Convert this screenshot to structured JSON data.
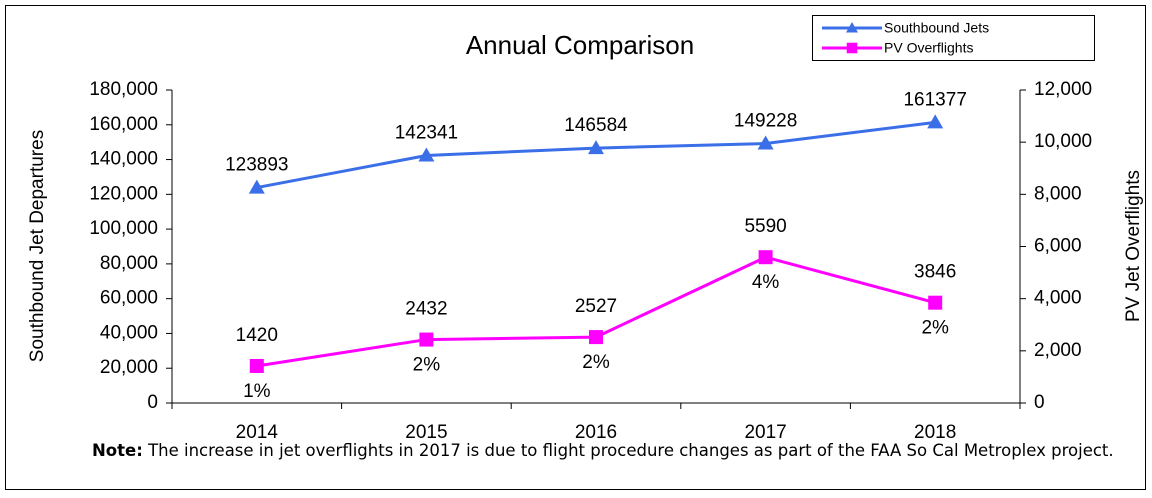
{
  "chart_data": {
    "type": "line",
    "title": "Annual Comparison",
    "y_label": "Southbound Jet Departures",
    "y2_label": "PV Jet Overflights",
    "categories": [
      "2014",
      "2015",
      "2016",
      "2017",
      "2018"
    ],
    "series": [
      {
        "name": "Southbound Jets",
        "color": "#3a6fe8",
        "marker": "triangle",
        "values": [
          123893,
          142341,
          146584,
          149228,
          161377
        ]
      },
      {
        "name": "PV Overflights",
        "color": "#ff00ff",
        "marker": "square",
        "axis": "y2",
        "values": [
          1420,
          2432,
          2527,
          5590,
          3846
        ],
        "percent_labels": [
          "1%",
          "2%",
          "2%",
          "4%",
          "2%"
        ]
      }
    ],
    "ylim": [
      0,
      180000
    ],
    "yticks": [
      0,
      {
        "value": 20000,
        "label": "20,000"
      },
      {
        "value": 40000,
        "label": "40,000"
      },
      {
        "value": 60000,
        "label": "60,000"
      },
      {
        "value": 80000,
        "label": "80,000"
      },
      {
        "value": 100000,
        "label": "100,000"
      },
      {
        "value": 120000,
        "label": "120,000"
      },
      {
        "value": 140000,
        "label": "140,000"
      },
      {
        "value": 160000,
        "label": "160,000"
      },
      {
        "value": 180000,
        "label": "180,000"
      }
    ],
    "y2lim": [
      0,
      12000
    ],
    "y2ticks": [
      0,
      {
        "value": 2000,
        "label": "2,000"
      },
      {
        "value": 4000,
        "label": "4,000"
      },
      {
        "value": 6000,
        "label": "6,000"
      },
      {
        "value": 8000,
        "label": "8,000"
      },
      {
        "value": 10000,
        "label": "10,000"
      },
      {
        "value": 12000,
        "label": "12,000"
      }
    ],
    "grid": false,
    "legend": "top-right",
    "note_label": "Note:",
    "note": "The increase in jet overflights in 2017 is due to flight procedure changes as part of the FAA So Cal Metroplex project."
  }
}
